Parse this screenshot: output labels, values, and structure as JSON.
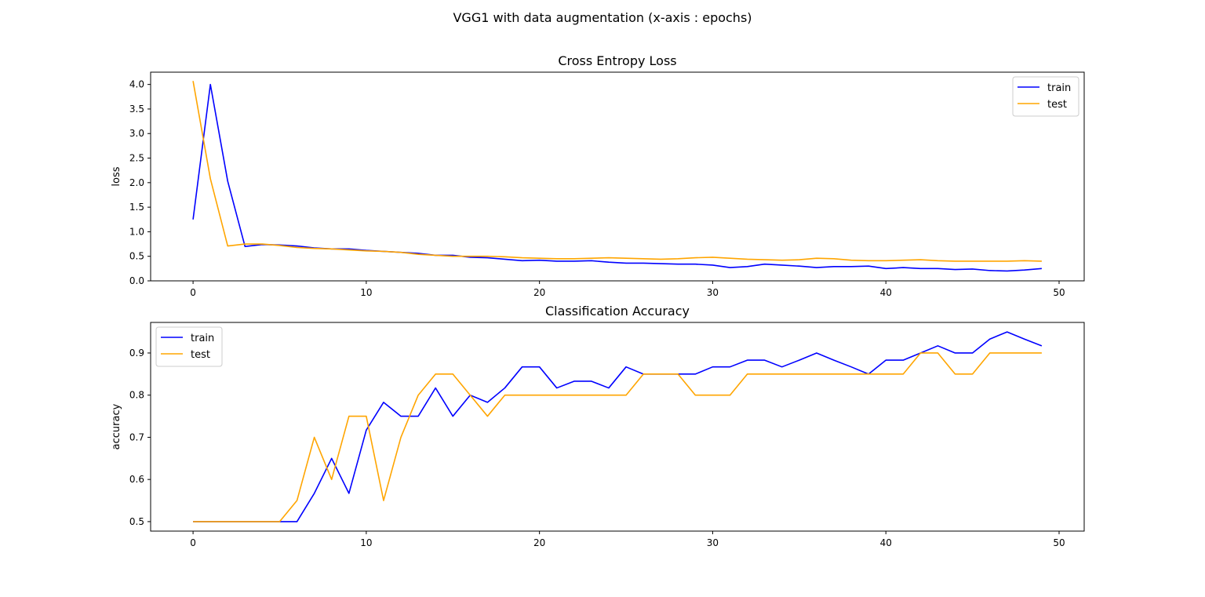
{
  "figure": {
    "suptitle": "VGG1 with data augmentation (x-axis : epochs)"
  },
  "colors": {
    "train": "#0000ff",
    "test": "#ffa500"
  },
  "chart_data": [
    {
      "type": "line",
      "title": "Cross Entropy Loss",
      "xlabel": "",
      "ylabel": "loss",
      "xlim": [
        -2.45,
        51.45
      ],
      "ylim": [
        0.0,
        4.25
      ],
      "xticks": [
        0,
        10,
        20,
        30,
        40,
        50
      ],
      "yticks": [
        0.0,
        0.5,
        1.0,
        1.5,
        2.0,
        2.5,
        3.0,
        3.5,
        4.0
      ],
      "ytick_labels": [
        "0.0",
        "0.5",
        "1.0",
        "1.5",
        "2.0",
        "2.5",
        "3.0",
        "3.5",
        "4.0"
      ],
      "grid": false,
      "legend": "top-right",
      "x": [
        0,
        1,
        2,
        3,
        4,
        5,
        6,
        7,
        8,
        9,
        10,
        11,
        12,
        13,
        14,
        15,
        16,
        17,
        18,
        19,
        20,
        21,
        22,
        23,
        24,
        25,
        26,
        27,
        28,
        29,
        30,
        31,
        32,
        33,
        34,
        35,
        36,
        37,
        38,
        39,
        40,
        41,
        42,
        43,
        44,
        45,
        46,
        47,
        48,
        49
      ],
      "series": [
        {
          "name": "train",
          "color": "#0000ff",
          "values": [
            1.25,
            4.0,
            2.03,
            0.7,
            0.74,
            0.73,
            0.71,
            0.67,
            0.65,
            0.65,
            0.62,
            0.6,
            0.58,
            0.56,
            0.52,
            0.52,
            0.48,
            0.47,
            0.44,
            0.41,
            0.42,
            0.4,
            0.4,
            0.41,
            0.38,
            0.36,
            0.36,
            0.35,
            0.34,
            0.34,
            0.32,
            0.27,
            0.29,
            0.34,
            0.32,
            0.3,
            0.27,
            0.29,
            0.29,
            0.3,
            0.25,
            0.27,
            0.25,
            0.25,
            0.23,
            0.24,
            0.21,
            0.2,
            0.22,
            0.25
          ]
        },
        {
          "name": "test",
          "color": "#ffa500",
          "values": [
            4.07,
            2.08,
            0.71,
            0.75,
            0.75,
            0.72,
            0.68,
            0.66,
            0.65,
            0.63,
            0.61,
            0.6,
            0.58,
            0.54,
            0.52,
            0.5,
            0.5,
            0.5,
            0.49,
            0.47,
            0.46,
            0.45,
            0.45,
            0.46,
            0.47,
            0.46,
            0.45,
            0.44,
            0.45,
            0.47,
            0.48,
            0.46,
            0.44,
            0.43,
            0.42,
            0.43,
            0.46,
            0.45,
            0.42,
            0.41,
            0.41,
            0.42,
            0.43,
            0.41,
            0.4,
            0.4,
            0.4,
            0.4,
            0.41,
            0.4
          ]
        }
      ]
    },
    {
      "type": "line",
      "title": "Classification Accuracy",
      "xlabel": "",
      "ylabel": "accuracy",
      "xlim": [
        -2.45,
        51.45
      ],
      "ylim": [
        0.4775,
        0.9725
      ],
      "xticks": [
        0,
        10,
        20,
        30,
        40,
        50
      ],
      "yticks": [
        0.5,
        0.6,
        0.7,
        0.8,
        0.9
      ],
      "ytick_labels": [
        "0.5",
        "0.6",
        "0.7",
        "0.8",
        "0.9"
      ],
      "grid": false,
      "legend": "top-left",
      "x": [
        0,
        1,
        2,
        3,
        4,
        5,
        6,
        7,
        8,
        9,
        10,
        11,
        12,
        13,
        14,
        15,
        16,
        17,
        18,
        19,
        20,
        21,
        22,
        23,
        24,
        25,
        26,
        27,
        28,
        29,
        30,
        31,
        32,
        33,
        34,
        35,
        36,
        37,
        38,
        39,
        40,
        41,
        42,
        43,
        44,
        45,
        46,
        47,
        48,
        49
      ],
      "series": [
        {
          "name": "train",
          "color": "#0000ff",
          "values": [
            0.5,
            0.5,
            0.5,
            0.5,
            0.5,
            0.5,
            0.5,
            0.567,
            0.65,
            0.567,
            0.717,
            0.783,
            0.75,
            0.75,
            0.817,
            0.75,
            0.8,
            0.783,
            0.817,
            0.867,
            0.867,
            0.817,
            0.833,
            0.833,
            0.817,
            0.867,
            0.85,
            0.85,
            0.85,
            0.85,
            0.867,
            0.867,
            0.883,
            0.883,
            0.867,
            0.883,
            0.9,
            0.883,
            0.867,
            0.85,
            0.883,
            0.883,
            0.9,
            0.917,
            0.9,
            0.9,
            0.933,
            0.95,
            0.933,
            0.917
          ]
        },
        {
          "name": "test",
          "color": "#ffa500",
          "values": [
            0.5,
            0.5,
            0.5,
            0.5,
            0.5,
            0.5,
            0.55,
            0.7,
            0.6,
            0.75,
            0.75,
            0.55,
            0.7,
            0.8,
            0.85,
            0.85,
            0.8,
            0.75,
            0.8,
            0.8,
            0.8,
            0.8,
            0.8,
            0.8,
            0.8,
            0.8,
            0.85,
            0.85,
            0.85,
            0.8,
            0.8,
            0.8,
            0.85,
            0.85,
            0.85,
            0.85,
            0.85,
            0.85,
            0.85,
            0.85,
            0.85,
            0.85,
            0.9,
            0.9,
            0.85,
            0.85,
            0.9,
            0.9,
            0.9,
            0.9
          ]
        }
      ]
    }
  ]
}
